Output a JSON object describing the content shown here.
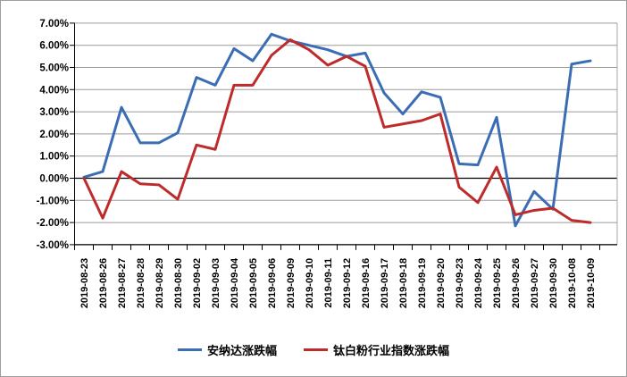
{
  "chart_data": {
    "type": "line",
    "title": "",
    "xlabel": "",
    "ylabel": "",
    "ylim": [
      -3,
      7
    ],
    "ytick_step": 1,
    "grid": true,
    "legend_position": "bottom",
    "y_tick_labels": [
      "7.00%",
      "6.00%",
      "5.00%",
      "4.00%",
      "3.00%",
      "2.00%",
      "1.00%",
      "0.00%",
      "-1.00%",
      "-2.00%",
      "-3.00%"
    ],
    "categories": [
      "2019-08-23",
      "2019-08-26",
      "2019-08-27",
      "2019-08-28",
      "2019-08-29",
      "2019-08-30",
      "2019-09-02",
      "2019-09-03",
      "2019-09-04",
      "2019-09-05",
      "2019-09-06",
      "2019-09-09",
      "2019-09-10",
      "2019-09-11",
      "2019-09-12",
      "2019-09-16",
      "2019-09-17",
      "2019-09-18",
      "2019-09-19",
      "2019-09-20",
      "2019-09-23",
      "2019-09-24",
      "2019-09-25",
      "2019-09-26",
      "2019-09-27",
      "2019-09-30",
      "2019-10-08",
      "2019-10-09"
    ],
    "series": [
      {
        "name": "安纳达涨跌幅",
        "color": "#3B6DB5",
        "values": [
          0.05,
          0.3,
          3.2,
          1.6,
          1.6,
          2.05,
          4.55,
          4.2,
          5.85,
          5.3,
          6.5,
          6.2,
          6.0,
          5.8,
          5.5,
          5.65,
          3.85,
          2.9,
          3.9,
          3.65,
          0.65,
          0.6,
          2.75,
          -2.15,
          -0.6,
          -1.4,
          5.15,
          5.3
        ]
      },
      {
        "name": "钛白粉行业指数涨跌幅",
        "color": "#BE2B2B",
        "values": [
          0.0,
          -1.8,
          0.3,
          -0.25,
          -0.3,
          -0.95,
          1.5,
          1.3,
          4.2,
          4.2,
          5.55,
          6.25,
          5.8,
          5.1,
          5.5,
          5.05,
          2.3,
          2.45,
          2.6,
          2.9,
          -0.4,
          -1.1,
          0.5,
          -1.65,
          -1.45,
          -1.35,
          -1.9,
          -2.0
        ]
      }
    ],
    "colors": {
      "gridline": "#9b9b9b",
      "zero_axis": "#000000",
      "axis_line": "#000000",
      "plot_border": "#a8a8a8",
      "label_text": "#000000"
    }
  }
}
